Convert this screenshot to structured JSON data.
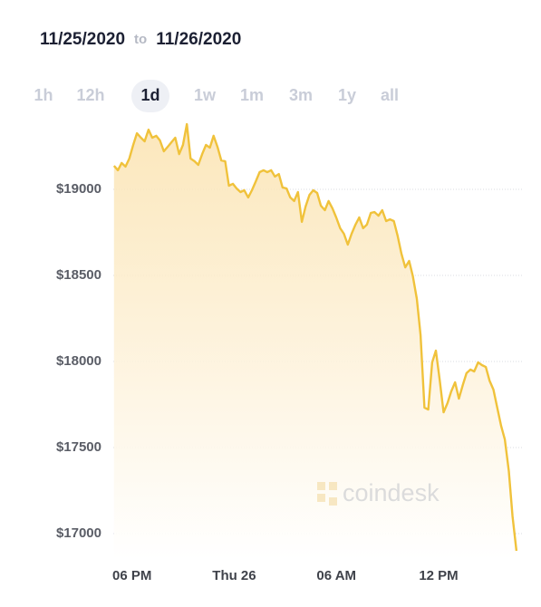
{
  "header": {
    "from": "11/25/2020",
    "joiner": "to",
    "to": "11/26/2020"
  },
  "range_options": [
    "1h",
    "12h",
    "1d",
    "1w",
    "1m",
    "3m",
    "1y",
    "all"
  ],
  "active_range_index": 2,
  "watermark": "coindesk",
  "chart_data": {
    "type": "area",
    "color": "#f0c23b",
    "grid": true,
    "x": [
      16.94,
      17.17,
      17.39,
      17.62,
      17.84,
      18.07,
      18.29,
      18.52,
      18.74,
      18.97,
      19.19,
      19.42,
      19.64,
      19.87,
      20.09,
      20.32,
      20.54,
      20.77,
      20.99,
      21.22,
      21.44,
      21.67,
      21.89,
      22.12,
      22.34,
      22.57,
      22.79,
      23.02,
      23.24,
      23.47,
      23.69,
      23.92,
      24.14,
      24.37,
      24.59,
      24.82,
      25.04,
      25.27,
      25.49,
      25.72,
      25.94,
      26.17,
      26.39,
      26.62,
      26.84,
      27.07,
      27.29,
      27.52,
      27.74,
      27.97,
      28.19,
      28.42,
      28.64,
      28.87,
      29.09,
      29.32,
      29.54,
      29.77,
      29.99,
      30.22,
      30.44,
      30.67,
      30.89,
      31.12,
      31.34,
      31.57,
      31.79,
      32.02,
      32.24,
      32.47,
      32.69,
      32.92,
      33.14,
      33.37,
      33.59,
      33.82,
      34.04,
      34.27,
      34.49,
      34.72,
      34.94,
      35.17,
      35.39,
      35.62,
      35.84,
      36.07,
      36.29,
      36.52,
      36.74,
      36.97,
      37.19,
      37.42,
      37.64,
      37.87,
      38.09,
      38.32,
      38.54,
      38.77,
      38.99,
      39.22,
      39.44,
      39.67,
      39.89,
      40.12,
      40.34,
      40.57
    ],
    "values": [
      19137,
      19111,
      19153,
      19132,
      19179,
      19258,
      19326,
      19300,
      19279,
      19347,
      19300,
      19311,
      19284,
      19221,
      19247,
      19274,
      19300,
      19205,
      19258,
      19379,
      19179,
      19163,
      19142,
      19205,
      19258,
      19242,
      19311,
      19247,
      19168,
      19163,
      19021,
      19032,
      19005,
      18984,
      18995,
      18953,
      18995,
      19047,
      19100,
      19111,
      19100,
      19111,
      19074,
      19089,
      19011,
      19005,
      18953,
      18932,
      18984,
      18811,
      18900,
      18968,
      18995,
      18979,
      18905,
      18879,
      18932,
      18889,
      18837,
      18774,
      18742,
      18679,
      18742,
      18795,
      18837,
      18774,
      18795,
      18863,
      18868,
      18847,
      18879,
      18816,
      18826,
      18816,
      18732,
      18626,
      18547,
      18584,
      18495,
      18363,
      18153,
      17732,
      17721,
      17995,
      18063,
      17889,
      17705,
      17758,
      17826,
      17879,
      17784,
      17863,
      17932,
      17953,
      17942,
      17995,
      17979,
      17968,
      17889,
      17837,
      17732,
      17626,
      17547,
      17363,
      17100,
      16900
    ],
    "xlim": [
      16.9,
      41
    ],
    "xticks": [
      {
        "value": 18,
        "label": "06 PM"
      },
      {
        "value": 24,
        "label": "Thu 26"
      },
      {
        "value": 30,
        "label": "06 AM"
      },
      {
        "value": 36,
        "label": "12 PM"
      }
    ],
    "ylim": [
      16850,
      19450
    ],
    "yticks": [
      {
        "value": 17000,
        "label": "$17000"
      },
      {
        "value": 17500,
        "label": "$17500"
      },
      {
        "value": 18000,
        "label": "$18000"
      },
      {
        "value": 18500,
        "label": "$18500"
      },
      {
        "value": 19000,
        "label": "$19000"
      }
    ]
  }
}
